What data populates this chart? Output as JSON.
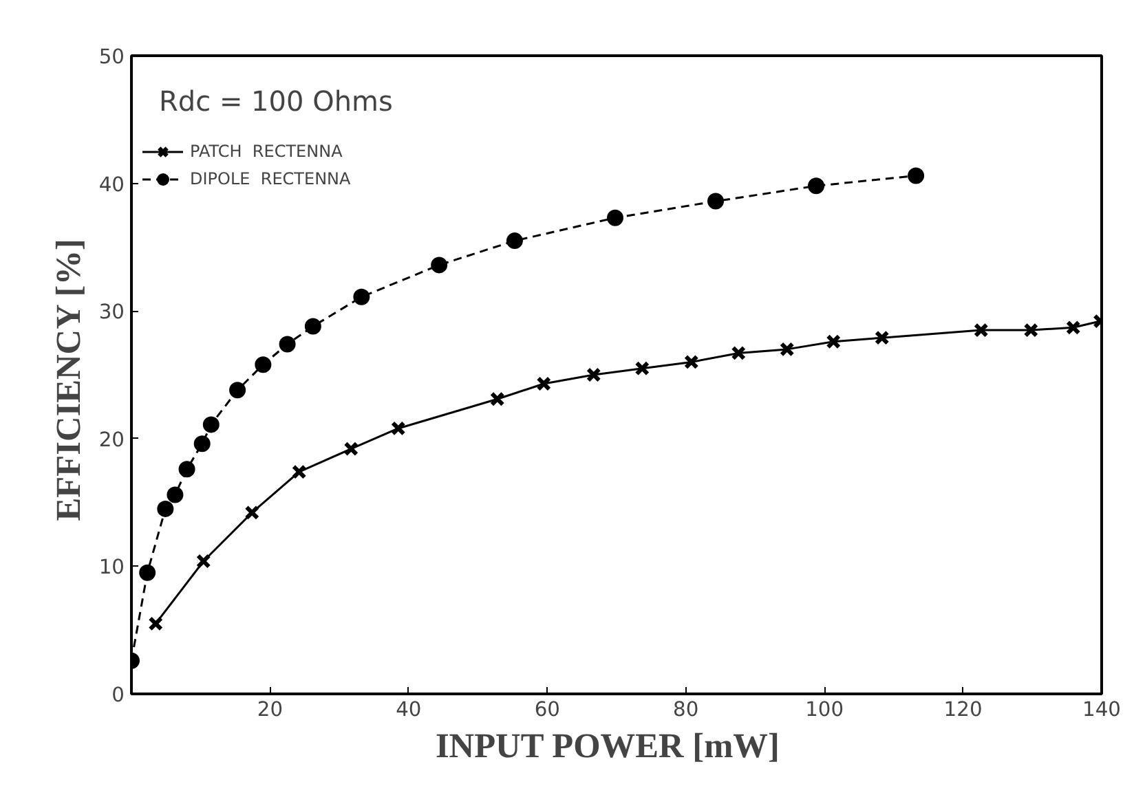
{
  "chart_data": {
    "type": "line",
    "xlabel": "INPUT POWER   [mW]",
    "ylabel": "EFFICIENCY  [%]",
    "annotations": [
      "Rdc  =  100  Ohms"
    ],
    "xlim": [
      0,
      140
    ],
    "ylim": [
      0,
      50
    ],
    "xticks": [
      20,
      40,
      60,
      80,
      100,
      120,
      140
    ],
    "yticks": [
      0,
      10,
      20,
      30,
      40,
      50
    ],
    "grid": false,
    "legend": "top left",
    "series": [
      {
        "name": "PATCH  RECTENNA",
        "color": "#000000",
        "marker": "cross",
        "line_style": "solid",
        "x": [
          3.5,
          10.4,
          17.4,
          24.2,
          31.7,
          38.5,
          52.8,
          59.5,
          66.7,
          73.7,
          80.8,
          87.6,
          94.6,
          101.3,
          108.3,
          122.6,
          129.8,
          135.9,
          139.8
        ],
        "values": [
          5.5,
          10.4,
          14.2,
          17.4,
          19.2,
          20.8,
          23.1,
          24.3,
          25.0,
          25.5,
          26.0,
          26.7,
          27.0,
          27.6,
          27.9,
          28.5,
          28.5,
          28.7,
          29.2
        ]
      },
      {
        "name": "DIPOLE  RECTENNA",
        "color": "#000000",
        "marker": "circle",
        "line_style": "dashed",
        "x": [
          0.0,
          2.3,
          4.9,
          6.3,
          8.0,
          10.2,
          11.5,
          15.3,
          19.0,
          22.5,
          26.2,
          33.2,
          44.4,
          55.3,
          69.8,
          84.3,
          98.8,
          113.2
        ],
        "values": [
          2.6,
          9.5,
          14.5,
          15.6,
          17.6,
          19.6,
          21.1,
          23.8,
          25.8,
          27.4,
          28.8,
          31.1,
          33.6,
          35.5,
          37.3,
          38.6,
          39.8,
          40.6
        ]
      }
    ]
  }
}
